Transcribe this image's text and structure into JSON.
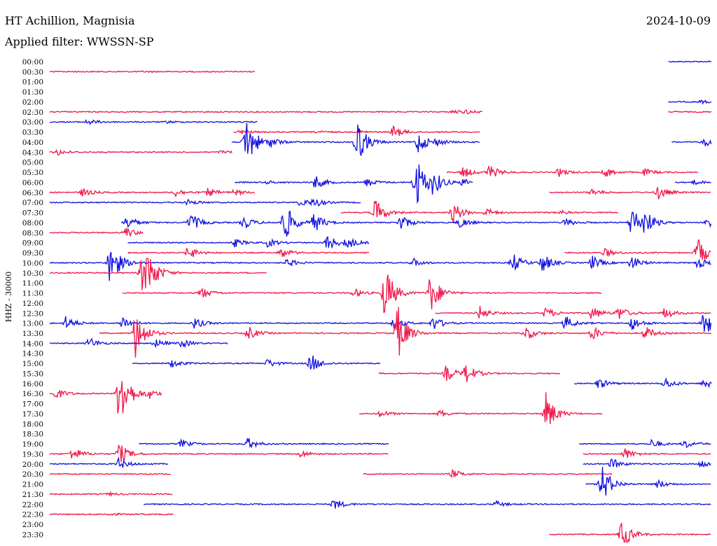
{
  "header": {
    "station": "HT Achillion, Magnisia",
    "date": "2024-10-09",
    "filter": "Applied filter: WWSSN-SP"
  },
  "colors": {
    "odd": "#1010e0",
    "even": "#f0184a"
  },
  "chart_data": {
    "type": "line",
    "subtype": "helicorder",
    "title": "HT Achillion, Magnisia",
    "date": "2024-10-09",
    "filter": "Applied filter: WWSSN-SP",
    "ylabel": "HHZ - 30000",
    "row_minutes": 30,
    "tick_labels": [
      "00:00",
      "00:30",
      "01:00",
      "01:30",
      "02:00",
      "02:30",
      "03:00",
      "03:30",
      "04:00",
      "04:30",
      "05:00",
      "05:30",
      "06:00",
      "06:30",
      "07:00",
      "07:30",
      "08:00",
      "08:30",
      "09:00",
      "09:30",
      "10:00",
      "10:30",
      "11:00",
      "11:30",
      "12:00",
      "12:30",
      "13:00",
      "13:30",
      "14:00",
      "14:30",
      "15:00",
      "15:30",
      "16:00",
      "16:30",
      "17:00",
      "17:30",
      "18:00",
      "18:30",
      "19:00",
      "19:30",
      "20:00",
      "20:30",
      "21:00",
      "21:30",
      "22:00",
      "22:30",
      "23:00",
      "23:30"
    ],
    "row_traces": [
      {
        "row": 0,
        "segs": [
          [
            0.935,
            1.0
          ]
        ],
        "bursts": [],
        "amp": 1
      },
      {
        "row": 1,
        "segs": [
          [
            0.0,
            0.31
          ]
        ],
        "bursts": [
          [
            0.145,
            0.6
          ]
        ],
        "amp": 1
      },
      {
        "row": 4,
        "segs": [
          [
            0.935,
            1.0
          ]
        ],
        "bursts": [
          [
            0.985,
            2
          ]
        ],
        "amp": 1
      },
      {
        "row": 5,
        "segs": [
          [
            0.0,
            0.654
          ],
          [
            0.935,
            1.0
          ]
        ],
        "bursts": [
          [
            0.61,
            3
          ],
          [
            0.63,
            2.5
          ]
        ],
        "amp": 1
      },
      {
        "row": 6,
        "segs": [
          [
            0.0,
            0.314
          ]
        ],
        "bursts": [
          [
            0.058,
            4
          ],
          [
            0.178,
            1.5
          ]
        ],
        "amp": 1
      },
      {
        "row": 7,
        "segs": [
          [
            0.278,
            0.651
          ]
        ],
        "bursts": [
          [
            0.289,
            3
          ],
          [
            0.406,
            1.5
          ],
          [
            0.469,
            2
          ],
          [
            0.52,
            9
          ]
        ],
        "amp": 1
      },
      {
        "row": 8,
        "segs": [
          [
            0.275,
            0.65
          ],
          [
            0.94,
            1.0
          ]
        ],
        "bursts": [
          [
            0.297,
            40
          ],
          [
            0.335,
            6
          ],
          [
            0.464,
            35
          ],
          [
            0.557,
            16
          ],
          [
            0.585,
            4
          ],
          [
            0.99,
            6
          ]
        ],
        "amp": 1
      },
      {
        "row": 9,
        "segs": [
          [
            0.0,
            0.276
          ]
        ],
        "bursts": [
          [
            0.01,
            5
          ],
          [
            0.26,
            2
          ]
        ],
        "amp": 1
      },
      {
        "row": 11,
        "segs": [
          [
            0.6,
            0.98
          ]
        ],
        "bursts": [
          [
            0.625,
            8
          ],
          [
            0.665,
            10
          ],
          [
            0.77,
            6
          ],
          [
            0.84,
            7
          ],
          [
            0.9,
            5
          ]
        ],
        "amp": 1
      },
      {
        "row": 12,
        "segs": [
          [
            0.28,
            0.64
          ],
          [
            0.945,
            1.0
          ]
        ],
        "bursts": [
          [
            0.33,
            2
          ],
          [
            0.402,
            10
          ],
          [
            0.48,
            6
          ],
          [
            0.554,
            40
          ],
          [
            0.58,
            15
          ],
          [
            0.625,
            5
          ],
          [
            0.975,
            3
          ]
        ],
        "amp": 1
      },
      {
        "row": 13,
        "segs": [
          [
            0.0,
            0.31
          ],
          [
            0.755,
            1.0
          ]
        ],
        "bursts": [
          [
            0.05,
            6
          ],
          [
            0.19,
            6
          ],
          [
            0.24,
            6
          ],
          [
            0.28,
            4
          ],
          [
            0.82,
            5
          ],
          [
            0.92,
            10
          ]
        ],
        "amp": 1
      },
      {
        "row": 14,
        "segs": [
          [
            0.0,
            0.47
          ]
        ],
        "bursts": [
          [
            0.21,
            4
          ],
          [
            0.38,
            6
          ],
          [
            0.4,
            6
          ]
        ],
        "amp": 1
      },
      {
        "row": 15,
        "segs": [
          [
            0.44,
            0.86
          ]
        ],
        "bursts": [
          [
            0.492,
            20
          ],
          [
            0.61,
            15
          ],
          [
            0.66,
            6
          ],
          [
            0.77,
            3
          ]
        ],
        "amp": 1
      },
      {
        "row": 16,
        "segs": [
          [
            0.108,
            1.0
          ]
        ],
        "bursts": [
          [
            0.117,
            10
          ],
          [
            0.213,
            14
          ],
          [
            0.293,
            10
          ],
          [
            0.355,
            30
          ],
          [
            0.4,
            14
          ],
          [
            0.53,
            12
          ],
          [
            0.62,
            8
          ],
          [
            0.78,
            6
          ],
          [
            0.88,
            25
          ],
          [
            0.9,
            14
          ],
          [
            0.995,
            8
          ]
        ],
        "amp": 1
      },
      {
        "row": 17,
        "segs": [
          [
            0.0,
            0.142
          ]
        ],
        "bursts": [
          [
            0.115,
            8
          ]
        ],
        "amp": 1
      },
      {
        "row": 18,
        "segs": [
          [
            0.118,
            0.483
          ]
        ],
        "bursts": [
          [
            0.28,
            6
          ],
          [
            0.33,
            6
          ],
          [
            0.42,
            12
          ],
          [
            0.45,
            8
          ]
        ],
        "amp": 1
      },
      {
        "row": 19,
        "segs": [
          [
            0.118,
            0.483
          ],
          [
            0.778,
            1.0
          ]
        ],
        "bursts": [
          [
            0.21,
            10
          ],
          [
            0.35,
            8
          ],
          [
            0.84,
            6
          ],
          [
            0.98,
            22
          ]
        ],
        "amp": 1
      },
      {
        "row": 20,
        "segs": [
          [
            0.0,
            1.0
          ]
        ],
        "bursts": [
          [
            0.092,
            36
          ],
          [
            0.36,
            6
          ],
          [
            0.55,
            6
          ],
          [
            0.7,
            14
          ],
          [
            0.745,
            14
          ],
          [
            0.82,
            10
          ],
          [
            0.88,
            10
          ],
          [
            0.98,
            8
          ]
        ],
        "amp": 1
      },
      {
        "row": 21,
        "segs": [
          [
            0.0,
            0.328
          ]
        ],
        "bursts": [
          [
            0.14,
            28
          ],
          [
            0.15,
            20
          ]
        ],
        "amp": 1
      },
      {
        "row": 23,
        "segs": [
          [
            0.11,
            0.835
          ]
        ],
        "bursts": [
          [
            0.23,
            8
          ],
          [
            0.507,
            40
          ],
          [
            0.576,
            30
          ],
          [
            0.46,
            6
          ]
        ],
        "amp": 1
      },
      {
        "row": 25,
        "segs": [
          [
            0.583,
            1.0
          ]
        ],
        "bursts": [
          [
            0.65,
            10
          ],
          [
            0.75,
            8
          ],
          [
            0.82,
            10
          ],
          [
            0.86,
            10
          ],
          [
            0.93,
            8
          ]
        ],
        "amp": 1
      },
      {
        "row": 26,
        "segs": [
          [
            0.0,
            1.0
          ]
        ],
        "bursts": [
          [
            0.025,
            10
          ],
          [
            0.11,
            10
          ],
          [
            0.22,
            8
          ],
          [
            0.52,
            10
          ],
          [
            0.58,
            10
          ],
          [
            0.78,
            10
          ],
          [
            0.88,
            10
          ],
          [
            0.99,
            22
          ]
        ],
        "amp": 1
      },
      {
        "row": 27,
        "segs": [
          [
            0.075,
            1.0
          ]
        ],
        "bursts": [
          [
            0.13,
            36
          ],
          [
            0.3,
            10
          ],
          [
            0.526,
            40
          ],
          [
            0.72,
            10
          ],
          [
            0.82,
            10
          ],
          [
            0.9,
            10
          ]
        ],
        "amp": 1
      },
      {
        "row": 28,
        "segs": [
          [
            0.0,
            0.27
          ]
        ],
        "bursts": [
          [
            0.06,
            8
          ],
          [
            0.16,
            6
          ],
          [
            0.2,
            6
          ]
        ],
        "amp": 1
      },
      {
        "row": 30,
        "segs": [
          [
            0.125,
            0.5
          ]
        ],
        "bursts": [
          [
            0.185,
            6
          ],
          [
            0.33,
            6
          ],
          [
            0.395,
            14
          ]
        ],
        "amp": 1
      },
      {
        "row": 31,
        "segs": [
          [
            0.497,
            0.772
          ]
        ],
        "bursts": [
          [
            0.6,
            12
          ],
          [
            0.63,
            14
          ]
        ],
        "amp": 1
      },
      {
        "row": 32,
        "segs": [
          [
            0.793,
            1.0
          ]
        ],
        "bursts": [
          [
            0.83,
            8
          ],
          [
            0.93,
            8
          ],
          [
            0.99,
            8
          ]
        ],
        "amp": 1
      },
      {
        "row": 33,
        "segs": [
          [
            0.0,
            0.17
          ]
        ],
        "bursts": [
          [
            0.01,
            8
          ],
          [
            0.106,
            55
          ],
          [
            0.15,
            6
          ]
        ],
        "amp": 1
      },
      {
        "row": 35,
        "segs": [
          [
            0.468,
            0.835
          ]
        ],
        "bursts": [
          [
            0.5,
            5
          ],
          [
            0.59,
            5
          ],
          [
            0.75,
            30
          ]
        ],
        "amp": 1
      },
      {
        "row": 38,
        "segs": [
          [
            0.135,
            0.513
          ],
          [
            0.8,
            1.0
          ]
        ],
        "bursts": [
          [
            0.2,
            6
          ],
          [
            0.3,
            8
          ],
          [
            0.91,
            6
          ],
          [
            0.96,
            6
          ]
        ],
        "amp": 1
      },
      {
        "row": 39,
        "segs": [
          [
            0.0,
            0.513
          ],
          [
            0.806,
            1.0
          ]
        ],
        "bursts": [
          [
            0.035,
            10
          ],
          [
            0.105,
            16
          ],
          [
            0.38,
            5
          ],
          [
            0.87,
            8
          ]
        ],
        "amp": 1
      },
      {
        "row": 40,
        "segs": [
          [
            0.0,
            0.18
          ],
          [
            0.806,
            1.0
          ]
        ],
        "bursts": [
          [
            0.105,
            8
          ],
          [
            0.85,
            8
          ],
          [
            0.985,
            6
          ]
        ],
        "amp": 1
      },
      {
        "row": 41,
        "segs": [
          [
            0.0,
            0.184
          ],
          [
            0.474,
            0.85
          ]
        ],
        "bursts": [
          [
            0.61,
            6
          ]
        ],
        "amp": 1
      },
      {
        "row": 42,
        "segs": [
          [
            0.81,
            1.0
          ]
        ],
        "bursts": [
          [
            0.835,
            28
          ],
          [
            0.92,
            6
          ]
        ],
        "amp": 1
      },
      {
        "row": 43,
        "segs": [
          [
            0.0,
            0.186
          ]
        ],
        "bursts": [
          [
            0.09,
            2
          ]
        ],
        "amp": 1
      },
      {
        "row": 44,
        "segs": [
          [
            0.142,
            1.0
          ]
        ],
        "bursts": [
          [
            0.43,
            8
          ],
          [
            0.675,
            4
          ]
        ],
        "amp": 1
      },
      {
        "row": 45,
        "segs": [
          [
            0.0,
            0.187
          ]
        ],
        "bursts": [
          [
            0.09,
            2
          ]
        ],
        "amp": 1
      },
      {
        "row": 47,
        "segs": [
          [
            0.755,
            1.0
          ]
        ],
        "bursts": [
          [
            0.865,
            22
          ]
        ],
        "amp": 1
      }
    ]
  }
}
